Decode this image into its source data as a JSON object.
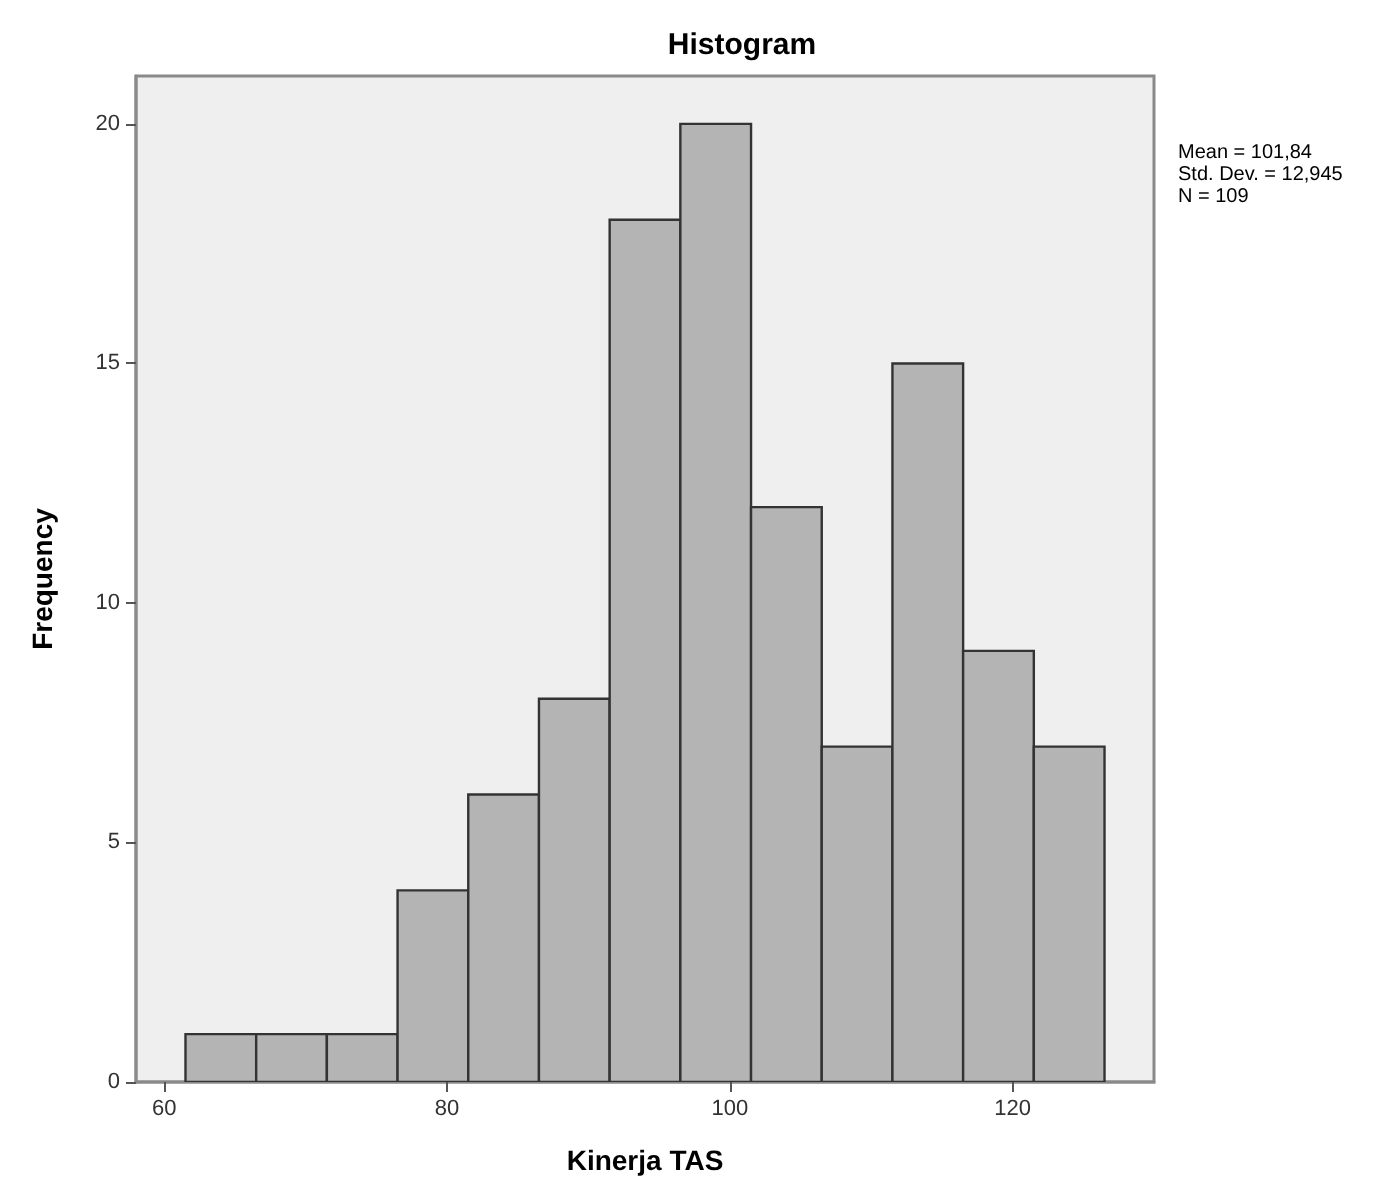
{
  "chart_data": {
    "type": "histogram",
    "title": "Histogram",
    "xlabel": "Kinerja TAS",
    "ylabel": "Frequency",
    "bins": [
      61.5,
      66.5,
      71.5,
      76.5,
      81.5,
      86.5,
      91.5,
      96.5,
      101.5,
      106.5,
      111.5,
      116.5,
      121.5,
      126.5
    ],
    "values": [
      1,
      1,
      1,
      4,
      6,
      8,
      18,
      20,
      12,
      7,
      15,
      9,
      7
    ],
    "color": "#b4b4b4",
    "xlim": [
      58,
      130
    ],
    "xticks": [
      60,
      80,
      100,
      120
    ],
    "ylim": [
      0,
      21
    ],
    "yticks": [
      0,
      5,
      10,
      15,
      20
    ],
    "grid": false,
    "annotations": [
      "Mean = 101,84",
      "Std. Dev. = 12,945",
      "N = 109"
    ]
  }
}
